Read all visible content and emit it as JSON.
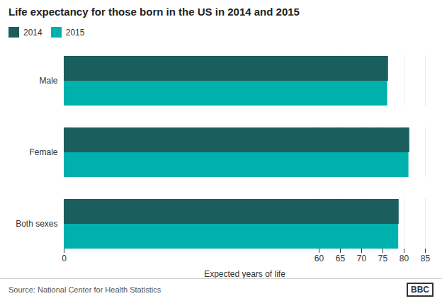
{
  "chart_data": {
    "type": "bar",
    "orientation": "horizontal",
    "title": "Life expectancy for those born in the US in 2014 and 2015",
    "categories": [
      "Both sexes",
      "Female",
      "Male"
    ],
    "series": [
      {
        "name": "2014",
        "color": "#1a5e5e",
        "values": [
          78.8,
          81.3,
          76.3
        ]
      },
      {
        "name": "2015",
        "color": "#00b0ad",
        "values": [
          78.7,
          81.1,
          76.1
        ]
      }
    ],
    "xlabel": "Expected years of life",
    "xlim": [
      0,
      85
    ],
    "xticks": [
      0,
      60,
      65,
      70,
      75,
      80,
      85
    ],
    "grid": true,
    "legend": "upper left",
    "caption": "Source: National Center for Health Statistics",
    "annotations": [
      "BBC"
    ]
  }
}
